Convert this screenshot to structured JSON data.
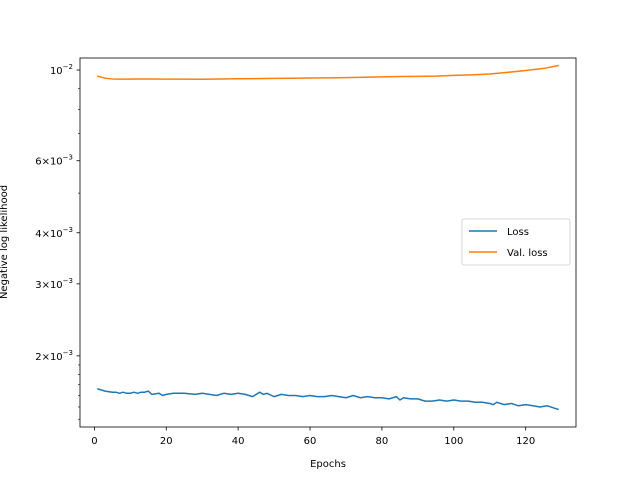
{
  "chart_data": {
    "type": "line",
    "title": "",
    "xlabel": "Epochs",
    "ylabel": "Negative log likelihood",
    "yscale": "log",
    "xlim": [
      -4,
      134
    ],
    "ylim": [
      0.00134,
      0.0107
    ],
    "grid": false,
    "legend_position": "center-right",
    "x_ticks": [
      0,
      20,
      40,
      60,
      80,
      100,
      120
    ],
    "x_tick_labels": [
      "0",
      "20",
      "40",
      "60",
      "80",
      "100",
      "120"
    ],
    "y_ticks": [
      0.002,
      0.003,
      0.004,
      0.006,
      0.01
    ],
    "y_tick_labels": [
      {
        "base": "2",
        "exp": "−3",
        "pre": "2×"
      },
      {
        "base": "3",
        "exp": "−3",
        "pre": "3×"
      },
      {
        "base": "4",
        "exp": "−3",
        "pre": "4×"
      },
      {
        "base": "6",
        "exp": "−3",
        "pre": "6×"
      },
      {
        "base": "10",
        "exp": "−2",
        "pre": ""
      }
    ],
    "series": [
      {
        "name": "Loss",
        "color": "#1f77b4",
        "x": [
          1,
          3,
          5,
          6,
          7,
          8,
          9,
          10,
          11,
          12,
          13,
          14,
          15,
          16,
          18,
          19,
          20,
          22,
          25,
          28,
          30,
          32,
          34,
          36,
          38,
          40,
          42,
          44,
          46,
          47,
          48,
          50,
          52,
          54,
          56,
          58,
          60,
          62,
          64,
          66,
          68,
          70,
          72,
          74,
          76,
          78,
          80,
          82,
          84,
          85,
          86,
          88,
          90,
          92,
          94,
          96,
          98,
          100,
          102,
          104,
          106,
          108,
          110,
          111,
          112,
          114,
          116,
          118,
          120,
          122,
          124,
          126,
          128,
          129
        ],
        "values": [
          0.00166,
          0.00164,
          0.00163,
          0.00163,
          0.00162,
          0.00163,
          0.00162,
          0.00162,
          0.00163,
          0.00162,
          0.00163,
          0.00163,
          0.00164,
          0.00161,
          0.00162,
          0.0016,
          0.00161,
          0.00162,
          0.00162,
          0.00161,
          0.00162,
          0.00161,
          0.0016,
          0.00162,
          0.00161,
          0.00162,
          0.00161,
          0.00159,
          0.00163,
          0.00161,
          0.00162,
          0.00159,
          0.00161,
          0.0016,
          0.0016,
          0.00159,
          0.0016,
          0.00159,
          0.00159,
          0.0016,
          0.00159,
          0.00158,
          0.0016,
          0.00158,
          0.00159,
          0.00158,
          0.00158,
          0.00157,
          0.00159,
          0.00156,
          0.00158,
          0.00157,
          0.00157,
          0.00155,
          0.00155,
          0.00156,
          0.00155,
          0.00156,
          0.00155,
          0.00155,
          0.00154,
          0.00154,
          0.00153,
          0.00152,
          0.00154,
          0.00152,
          0.00153,
          0.00151,
          0.00152,
          0.00151,
          0.0015,
          0.00151,
          0.00149,
          0.00148
        ]
      },
      {
        "name": "Val. loss",
        "color": "#ff7f0e",
        "x": [
          1,
          3,
          5,
          8,
          12,
          16,
          20,
          25,
          30,
          35,
          40,
          45,
          50,
          55,
          60,
          65,
          70,
          75,
          80,
          85,
          90,
          95,
          100,
          105,
          110,
          115,
          120,
          125,
          129
        ],
        "values": [
          0.00965,
          0.00955,
          0.00951,
          0.0095,
          0.00951,
          0.00951,
          0.0095,
          0.0095,
          0.00949,
          0.00951,
          0.00952,
          0.00953,
          0.00954,
          0.00955,
          0.00956,
          0.00957,
          0.00958,
          0.0096,
          0.00962,
          0.00964,
          0.00965,
          0.00966,
          0.0097,
          0.00973,
          0.00978,
          0.00987,
          0.00997,
          0.01009,
          0.01025
        ]
      }
    ]
  }
}
